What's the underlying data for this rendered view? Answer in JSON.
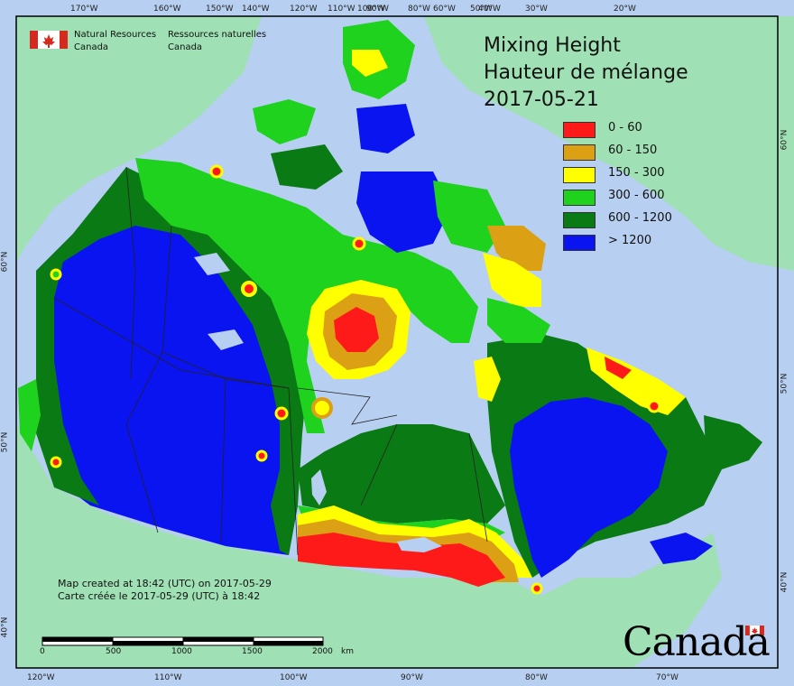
{
  "title": {
    "en": "Mixing Height",
    "fr": "Hauteur de mélange",
    "date": "2017-05-21"
  },
  "agency": {
    "en_line1": "Natural Resources",
    "en_line2": "Canada",
    "fr_line1": "Ressources naturelles",
    "fr_line2": "Canada"
  },
  "legend": [
    {
      "label": "0 - 60",
      "color": "#ff1a1a"
    },
    {
      "label": "60 - 150",
      "color": "#dca014"
    },
    {
      "label": "150 - 300",
      "color": "#ffff00"
    },
    {
      "label": "300 - 600",
      "color": "#1ed21e"
    },
    {
      "label": "600 - 1200",
      "color": "#0a7a14"
    },
    {
      "label": "> 1200",
      "color": "#0a14f0"
    }
  ],
  "credit": {
    "en": "Map created at 18:42 (UTC) on 2017-05-29",
    "fr": "Carte créée le 2017-05-29 (UTC) à 18:42"
  },
  "top_ticks": [
    "170°W",
    "160°W",
    "150°W",
    "140°W",
    "120°W",
    "110°W",
    "100°W",
    "90°W",
    "80°W",
    "60°W",
    "50°W",
    "40°W",
    "30°W",
    "20°W"
  ],
  "bottom_ticks": [
    "120°W",
    "110°W",
    "100°W",
    "90°W",
    "80°W",
    "70°W"
  ],
  "left_ticks": [
    "60°N",
    "50°N",
    "40°N"
  ],
  "right_ticks": [
    "60°N",
    "50°N",
    "40°N"
  ],
  "scale_bar": {
    "labels": [
      "0",
      "500",
      "1000",
      "1500",
      "2000"
    ],
    "unit": "km"
  },
  "wordmark": "Canada",
  "colors": {
    "ocean": "#b7cff0",
    "land_other": "#9fe0b4",
    "border": "#333333"
  }
}
